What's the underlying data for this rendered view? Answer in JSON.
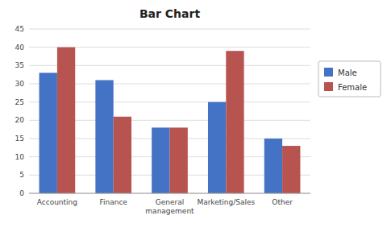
{
  "chart_data": {
    "type": "bar",
    "title": "Bar Chart",
    "categories": [
      "Accounting",
      "Finance",
      "General\nmanagement",
      "Marketing/Sales",
      "Other"
    ],
    "series": [
      {
        "name": "Male",
        "color": "#4472C4",
        "values": [
          33,
          31,
          18,
          25,
          15
        ]
      },
      {
        "name": "Female",
        "color": "#B85450",
        "values": [
          40,
          21,
          18,
          39,
          13
        ]
      }
    ],
    "ylim": [
      0,
      45
    ],
    "yticks": [
      0,
      5,
      10,
      15,
      20,
      25,
      30,
      35,
      40,
      45
    ],
    "grid": true,
    "legend": "right"
  }
}
